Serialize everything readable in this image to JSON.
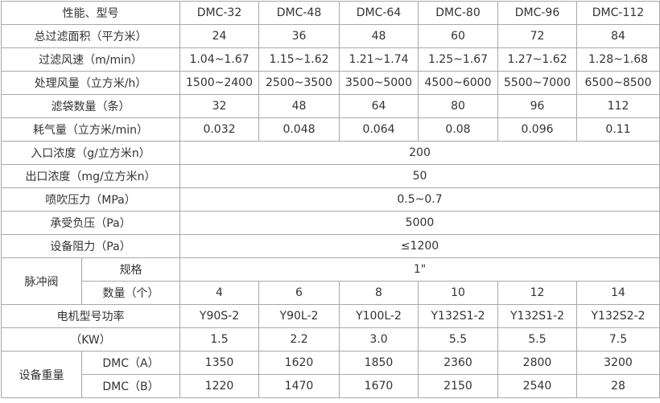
{
  "header": {
    "label": "性能、型号",
    "models": [
      "DMC-32",
      "DMC-48",
      "DMC-64",
      "DMC-80",
      "DMC-96",
      "DMC-112"
    ]
  },
  "per_model_rows": [
    {
      "label": "总过滤面积（平方米）",
      "values": [
        "24",
        "36",
        "48",
        "60",
        "72",
        "84"
      ]
    },
    {
      "label": "过滤风速（m/min）",
      "values": [
        "1.04~1.67",
        "1.15~1.62",
        "1.21~1.74",
        "1.25~1.67",
        "1.27~1.62",
        "1.28~1.68"
      ]
    },
    {
      "label": "处理风量（立方米/h）",
      "values": [
        "1500~2400",
        "2500~3500",
        "3500~5000",
        "4500~6000",
        "5500~7000",
        "6500~8500"
      ]
    },
    {
      "label": "滤袋数量（条）",
      "values": [
        "32",
        "48",
        "64",
        "80",
        "96",
        "112"
      ]
    },
    {
      "label": "耗气量（立方米/min）",
      "values": [
        "0.032",
        "0.048",
        "0.064",
        "0.08",
        "0.096",
        "0.11"
      ]
    }
  ],
  "shared_rows": [
    {
      "label": "入口浓度（g/立方米n）",
      "value": "200"
    },
    {
      "label": "出口浓度（mg/立方米n）",
      "value": "50"
    },
    {
      "label": "喷吹压力（MPa）",
      "value": "0.5~0.7"
    },
    {
      "label": "承受负压（Pa）",
      "value": "5000"
    },
    {
      "label": "设备阻力（Pa）",
      "value": "≤1200"
    }
  ],
  "pulse_valve": {
    "label": "脉冲阀",
    "spec": {
      "label": "规格",
      "value": "1\""
    },
    "quantity": {
      "label": "数量（个）",
      "values": [
        "4",
        "6",
        "8",
        "10",
        "12",
        "14"
      ]
    }
  },
  "motor": {
    "label": "电机型号功率",
    "values": [
      "Y90S-2",
      "Y90L-2",
      "Y100L-2",
      "Y132S1-2",
      "Y132S1-2",
      "Y132S2-2"
    ]
  },
  "power": {
    "label": "（KW）",
    "values": [
      "1.5",
      "2.2",
      "3.0",
      "5.5",
      "5.5",
      "7.5"
    ]
  },
  "weight": {
    "label": "设备重量",
    "rows": [
      {
        "label": "DMC（A）",
        "values": [
          "1350",
          "1620",
          "1850",
          "2360",
          "2800",
          "3200"
        ]
      },
      {
        "label": "DMC（B）",
        "values": [
          "1220",
          "1470",
          "1670",
          "2150",
          "2540",
          "28"
        ]
      }
    ]
  }
}
